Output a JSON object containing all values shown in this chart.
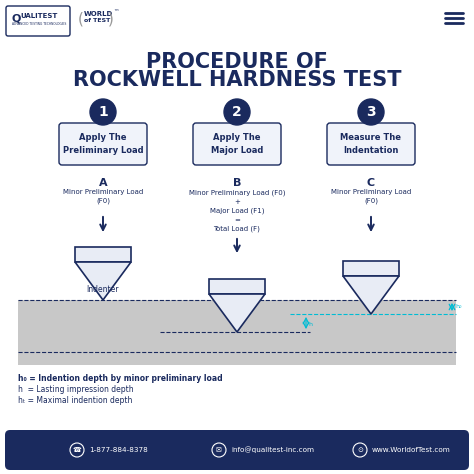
{
  "title_line1": "PROCEDURE OF",
  "title_line2": "ROCKWELL HARDNESS TEST",
  "bg_color": "#ffffff",
  "dark_navy": "#1a2a5e",
  "surface_color": "#c8c8c8",
  "indenter_fill": "#e8ecf5",
  "indenter_border": "#1a2a5e",
  "cyan_line_color": "#00bcd4",
  "step_numbers": [
    "1",
    "2",
    "3"
  ],
  "step_texts": [
    "Apply The\nPreliminary Load",
    "Apply The\nMajor Load",
    "Measure The\nIndentation"
  ],
  "label_letters": [
    "A",
    "B",
    "C"
  ],
  "text_A": "Minor Preliminary Load\n(F0)",
  "text_B": "Minor Preliminary Load (F0)\n+\nMajor Load (F1)\n=\nTotal Load (F)",
  "text_C": "Minor Preliminary Load\n(F0)",
  "indenter_label": "Indenter",
  "legend_line1": "h₀ = Indention depth by minor preliminary load",
  "legend_line2": "h  = Lasting impression depth",
  "legend_line3": "hₜ = Maximal indention depth",
  "footer_bg": "#1a2a5e",
  "footer_items": [
    "1-877-884-8378",
    "info@qualitest-inc.com",
    "www.WorldofTest.com"
  ]
}
